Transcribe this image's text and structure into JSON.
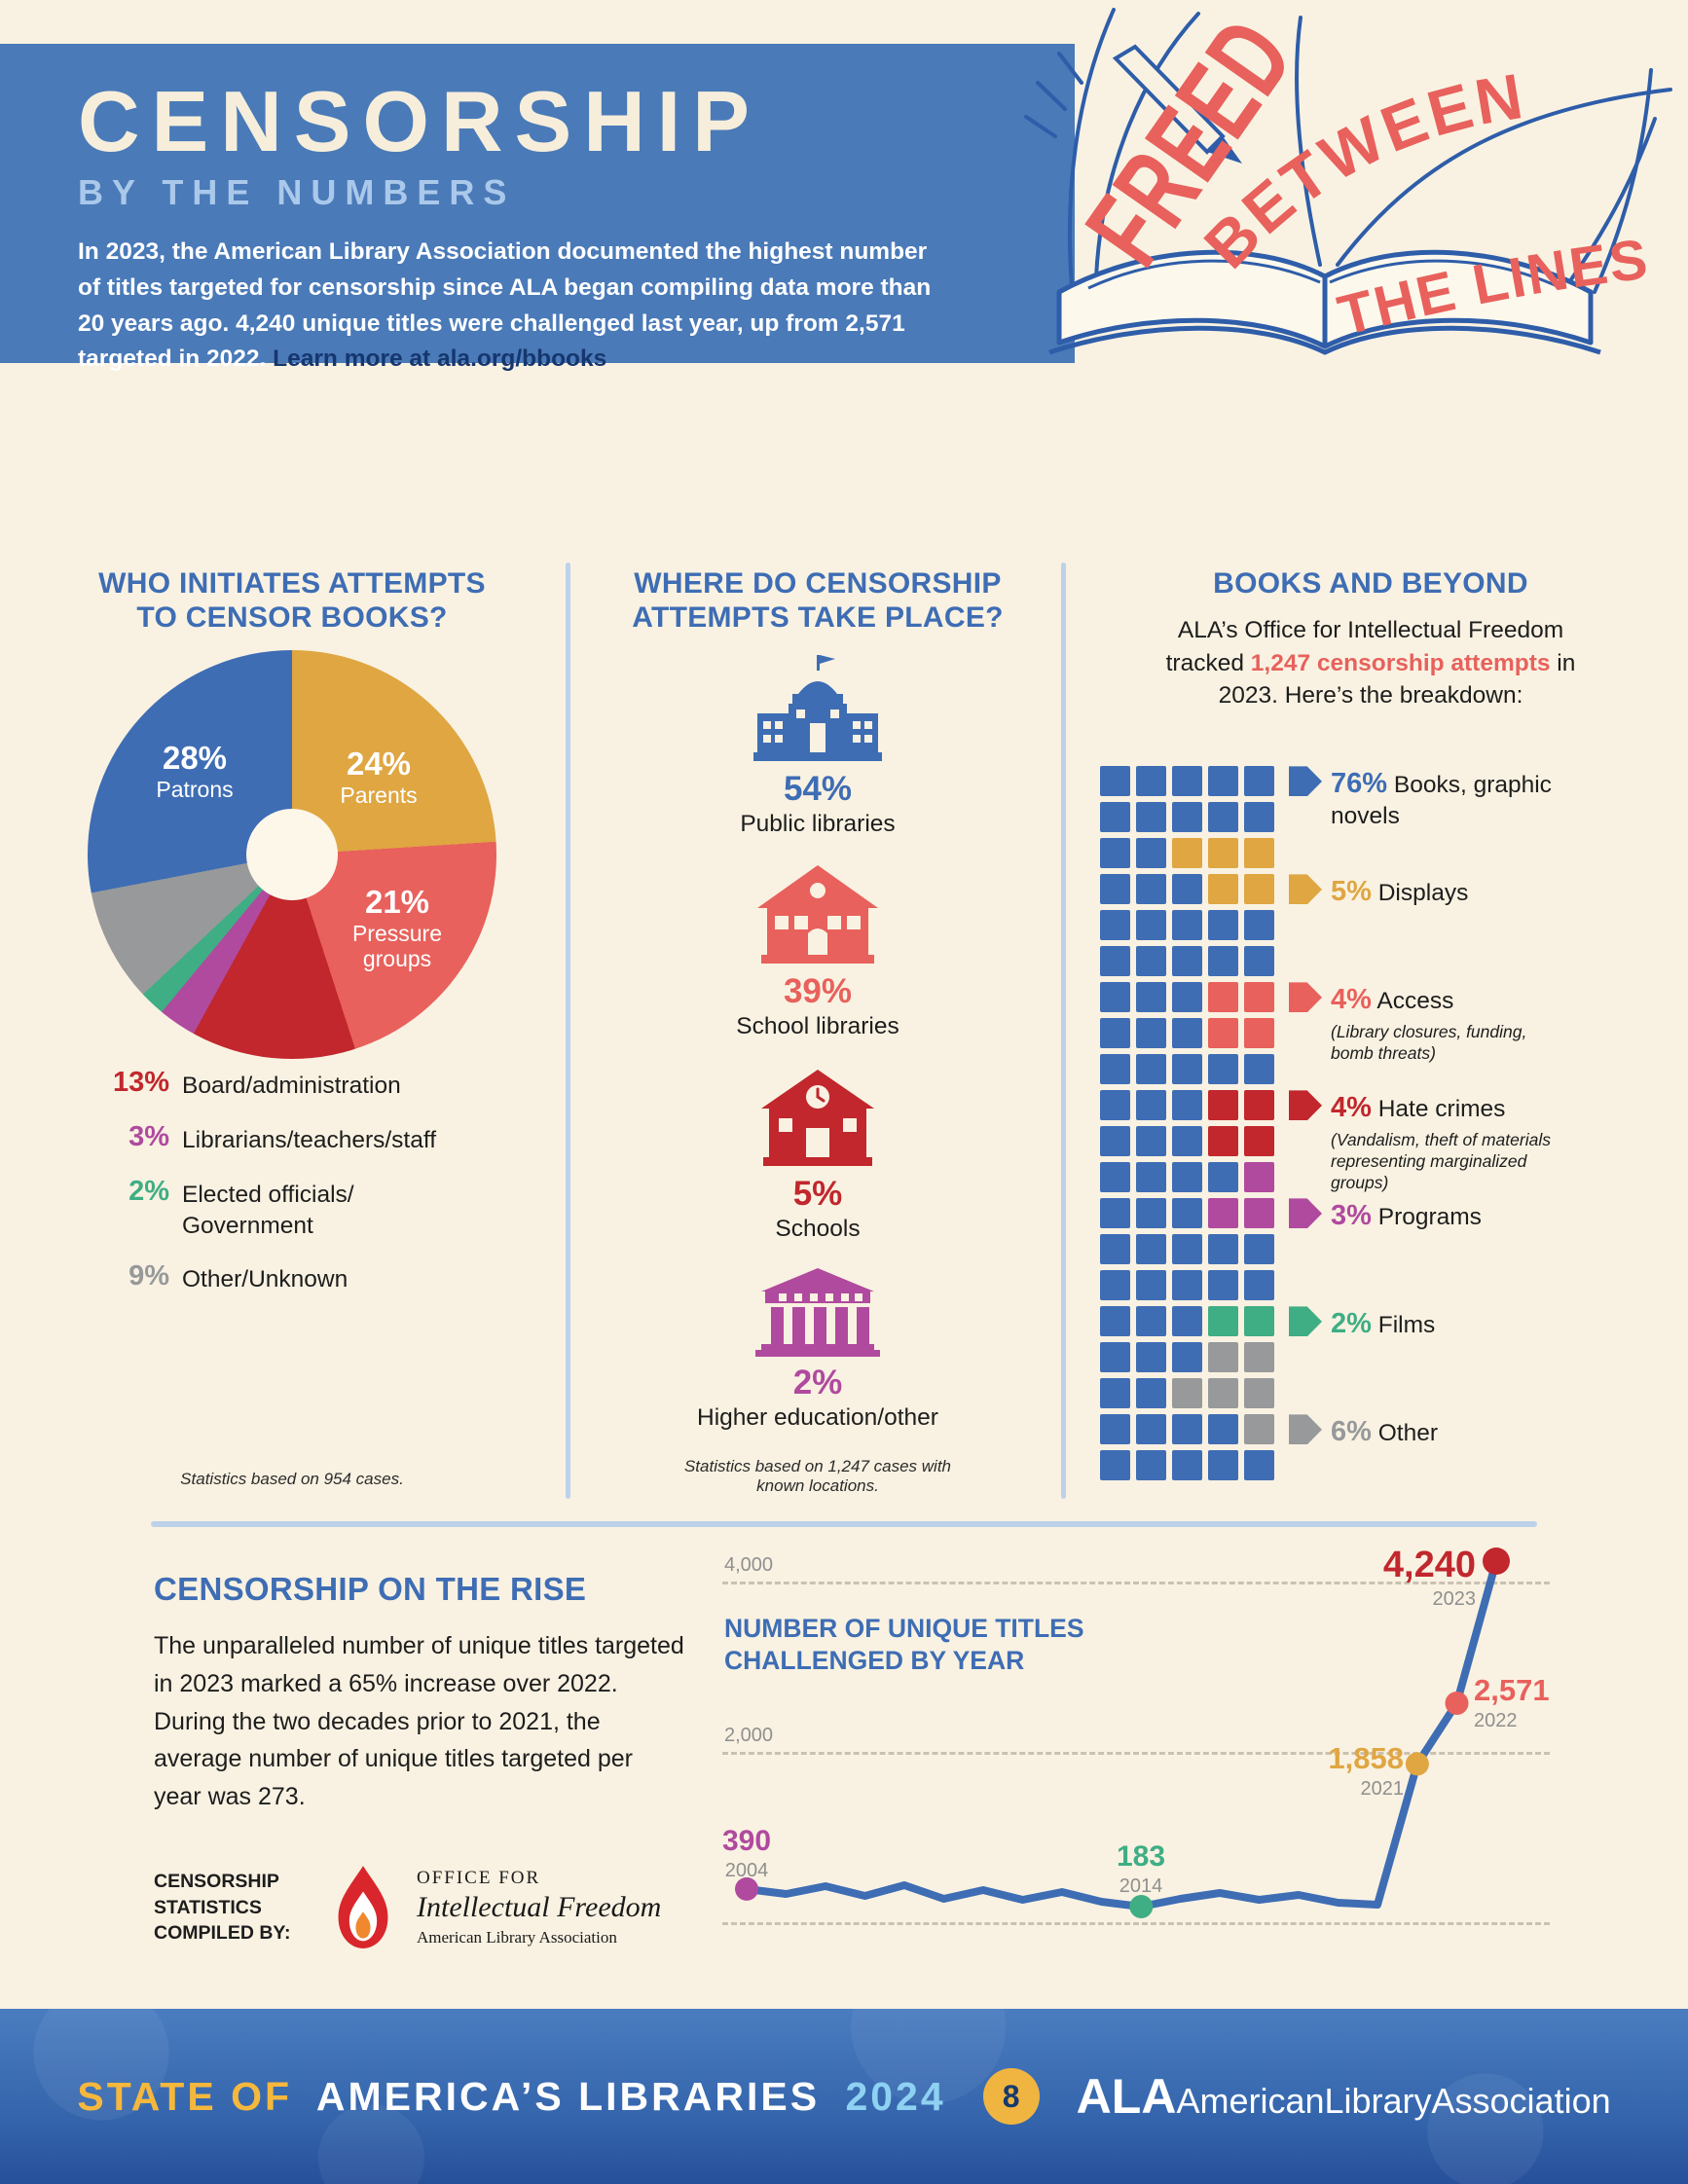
{
  "page": {
    "bg": "#f9f2e2",
    "accent_blue": "#3e6db4",
    "header_blue": "#4a7ab8"
  },
  "header": {
    "title": "CENSORSHIP",
    "subtitle": "BY THE NUMBERS",
    "intro": "In 2023, the American Library Association documented the highest number of titles targeted for censorship since ALA began compiling data more than 20 years ago. 4,240 unique titles were challenged last year, up from 2,571 targeted in 2022.",
    "link_text": "Learn more at ala.org/bbooks",
    "book_word1": "FREED",
    "book_word2": "BETWEEN",
    "book_word3": "THE LINES"
  },
  "who_section": {
    "title_line1": "WHO INITIATES ATTEMPTS",
    "title_line2": "TO CENSOR BOOKS?",
    "inside_labels": [
      {
        "pct": "28%",
        "label": "Patrons"
      },
      {
        "pct": "24%",
        "label": "Parents"
      },
      {
        "pct": "21%",
        "label": "Pressure groups"
      }
    ],
    "legend": [
      {
        "pct": "13%",
        "label": "Board/administration",
        "color": "#c1272d"
      },
      {
        "pct": "3%",
        "label": "Librarians/teachers/staff",
        "color": "#b04a9e"
      },
      {
        "pct": "2%",
        "label": "Elected officials/ Government",
        "color": "#3fae84"
      },
      {
        "pct": "9%",
        "label": "Other/Unknown",
        "color": "#97999b"
      }
    ],
    "note": "Statistics based on 954 cases."
  },
  "where_section": {
    "title_line1": "WHERE DO CENSORSHIP",
    "title_line2": "ATTEMPTS TAKE PLACE?",
    "items": [
      {
        "pct": "54%",
        "label": "Public libraries",
        "color": "#3e6db4"
      },
      {
        "pct": "39%",
        "label": "School libraries",
        "color": "#e8615c"
      },
      {
        "pct": "5%",
        "label": "Schools",
        "color": "#c1272d"
      },
      {
        "pct": "2%",
        "label": "Higher education/other",
        "color": "#b04a9e"
      }
    ],
    "note": "Statistics based on 1,247 cases with known locations."
  },
  "beyond_section": {
    "title": "BOOKS AND BEYOND",
    "intro_prefix": "ALA’s Office for Intellectual Freedom tracked ",
    "intro_highlight": "1,247 censorship attempts",
    "intro_suffix": " in 2023. Here’s the breakdown:",
    "labels": [
      {
        "pct": "76%",
        "name": "Books, graphic novels",
        "sub": "",
        "color": "#3e6db4"
      },
      {
        "pct": "5%",
        "name": "Displays",
        "sub": "",
        "color": "#dfa642"
      },
      {
        "pct": "4%",
        "name": "Access",
        "sub": "(Library closures, funding, bomb threats)",
        "color": "#e8615c"
      },
      {
        "pct": "4%",
        "name": "Hate crimes",
        "sub": "(Vandalism, theft of materials representing marginalized groups)",
        "color": "#c1272d"
      },
      {
        "pct": "3%",
        "name": "Programs",
        "sub": "",
        "color": "#b04a9e"
      },
      {
        "pct": "2%",
        "name": "Films",
        "sub": "",
        "color": "#3fae84"
      },
      {
        "pct": "6%",
        "name": "Other",
        "sub": "",
        "color": "#97999b"
      }
    ],
    "waffle": {
      "colors": {
        "B": "#3e6db4",
        "Y": "#dfa642",
        "S": "#e8615c",
        "R": "#c1272d",
        "M": "#b04a9e",
        "E": "#3fae84",
        "X": "#97999b"
      },
      "rows": [
        "BBBBB",
        "BBBBB",
        "BBYYY",
        "BBBYY",
        "BBBBB",
        "BBBBB",
        "BBBSS",
        "BBBSS",
        "BBBBB",
        "BBBRR",
        "BBBRR",
        "BBBBM",
        "BBBMM",
        "BBBBB",
        "BBBBB",
        "BBBEE",
        "BBBXX",
        "BBXXX",
        "BBBBX",
        "BBBBB"
      ]
    }
  },
  "rise_section": {
    "title": "CENSORSHIP ON THE RISE",
    "body": "The unparalleled number of unique titles targeted in 2023 marked a 65% increase over 2022. During the two decades prior to 2021, the average number of unique titles targeted per year was 273.",
    "compiled_by": "CENSORSHIP STATISTICS COMPILED BY:",
    "oif_line1": "OFFICE FOR",
    "oif_line2": "Intellectual Freedom",
    "oif_line3": "American Library Association"
  },
  "trend_chart": {
    "title_line1": "NUMBER OF UNIQUE TITLES",
    "title_line2": "CHALLENGED BY YEAR",
    "grid_label_top": "4,000",
    "grid_label_mid": "2,000",
    "points": [
      {
        "value_label": "390",
        "year_label": "2004",
        "color": "#b04a9e"
      },
      {
        "value_label": "183",
        "year_label": "2014",
        "color": "#3fae84"
      },
      {
        "value_label": "1,858",
        "year_label": "2021",
        "color": "#dfa642"
      },
      {
        "value_label": "2,571",
        "year_label": "2022",
        "color": "#e8615c"
      },
      {
        "value_label": "4,240",
        "year_label": "2023",
        "color": "#c1272d"
      }
    ]
  },
  "footer": {
    "brand_part1": "STATE OF",
    "brand_part2": "AMERICA’S LIBRARIES",
    "brand_year": "2024",
    "page_number": "8",
    "ala_bold": "ALA",
    "ala_text": "AmericanLibraryAssociation"
  },
  "chart_data": [
    {
      "type": "pie",
      "title": "WHO INITIATES ATTEMPTS TO CENSOR BOOKS?",
      "note": "Statistics based on 954 cases.",
      "unit": "percent",
      "donut": true,
      "start_angle_deg": 0,
      "series": [
        {
          "name": "Parents",
          "value": 24,
          "color": "#dfa642"
        },
        {
          "name": "Pressure groups",
          "value": 21,
          "color": "#e8615c"
        },
        {
          "name": "Board/administration",
          "value": 13,
          "color": "#c1272d"
        },
        {
          "name": "Librarians/teachers/staff",
          "value": 3,
          "color": "#b04a9e"
        },
        {
          "name": "Elected officials/Government",
          "value": 2,
          "color": "#3fae84"
        },
        {
          "name": "Other/Unknown",
          "value": 9,
          "color": "#97999b"
        },
        {
          "name": "Patrons",
          "value": 28,
          "color": "#3e6db4"
        }
      ]
    },
    {
      "type": "waffle",
      "title": "BOOKS AND BEYOND",
      "subtitle": "1,247 censorship attempts tracked in 2023",
      "unit": "percent",
      "categories": [
        "Books, graphic novels",
        "Displays",
        "Access (Library closures, funding, bomb threats)",
        "Hate crimes (Vandalism, theft of materials representing marginalized groups)",
        "Programs",
        "Films",
        "Other"
      ],
      "values": [
        76,
        5,
        4,
        4,
        3,
        2,
        6
      ],
      "colors": [
        "#3e6db4",
        "#dfa642",
        "#e8615c",
        "#c1272d",
        "#b04a9e",
        "#3fae84",
        "#97999b"
      ]
    },
    {
      "type": "line",
      "title": "NUMBER OF UNIQUE TITLES CHALLENGED BY YEAR",
      "x": [
        2004,
        2014,
        2021,
        2022,
        2023
      ],
      "values": [
        390,
        183,
        1858,
        2571,
        4240
      ],
      "ylim": [
        0,
        4400
      ],
      "gridlines": [
        2000,
        4000
      ],
      "grid_on": true,
      "line_color": "#3e6db4",
      "point_colors": [
        "#b04a9e",
        "#3fae84",
        "#dfa642",
        "#e8615c",
        "#c1272d"
      ]
    }
  ]
}
